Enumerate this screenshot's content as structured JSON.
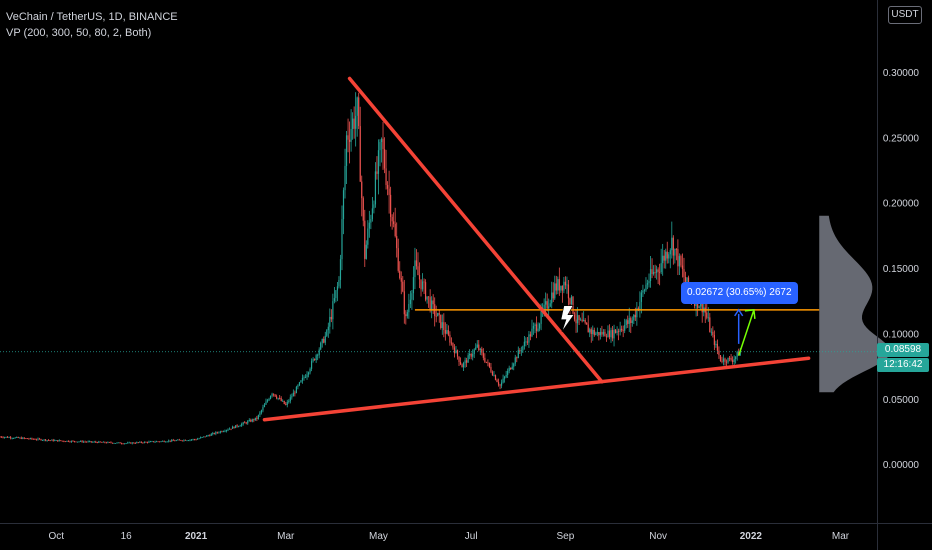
{
  "header": {
    "symbol_line": "VeChain / TetherUS, 1D, BINANCE",
    "indicator_line": "VP (200, 300, 50, 80, 2, Both)"
  },
  "currency_label": "USDT",
  "last_price": {
    "label": "0.08598",
    "value": 0.08598,
    "color": "#26a69a"
  },
  "countdown": {
    "label": "12:16:42"
  },
  "measure_label": "0.02672 (30.65%) 2672",
  "colors": {
    "up": "#26a69a",
    "down": "#ef5350",
    "trendline": "#f44336",
    "level": "#ff9800",
    "measure_arrow": "#2962ff",
    "projection_arrow": "#76ff03",
    "volume_profile": "#787b86"
  },
  "chart_data": {
    "type": "candlestick",
    "title": "VeChain / TetherUS, 1D, BINANCE",
    "y_ticks": [
      {
        "label": "0.30000",
        "value": 0.3
      },
      {
        "label": "0.25000",
        "value": 0.25
      },
      {
        "label": "0.20000",
        "value": 0.2
      },
      {
        "label": "0.15000",
        "value": 0.15
      },
      {
        "label": "0.10000",
        "value": 0.1
      },
      {
        "label": "0.05000",
        "value": 0.05
      },
      {
        "label": "0.00000",
        "value": 0.0
      }
    ],
    "ylim": [
      -0.045,
      0.355
    ],
    "xlim": [
      "2020-08-25",
      "2022-03-25"
    ],
    "x_ticks": [
      {
        "label": "Oct",
        "date": "2020-10-01",
        "bold": false
      },
      {
        "label": "16",
        "date": "2020-11-16",
        "bold": false
      },
      {
        "label": "2021",
        "date": "2021-01-01",
        "bold": true
      },
      {
        "label": "Mar",
        "date": "2021-03-01",
        "bold": false
      },
      {
        "label": "May",
        "date": "2021-05-01",
        "bold": false
      },
      {
        "label": "Jul",
        "date": "2021-07-01",
        "bold": false
      },
      {
        "label": "Sep",
        "date": "2021-09-01",
        "bold": false
      },
      {
        "label": "Nov",
        "date": "2021-11-01",
        "bold": false
      },
      {
        "label": "2022",
        "date": "2022-01-01",
        "bold": true
      },
      {
        "label": "Mar",
        "date": "2022-03-01",
        "bold": false
      }
    ],
    "price_path": [
      [
        "2020-08-25",
        0.021
      ],
      [
        "2020-10-01",
        0.018
      ],
      [
        "2020-11-16",
        0.016
      ],
      [
        "2021-01-01",
        0.019
      ],
      [
        "2021-01-25",
        0.028
      ],
      [
        "2021-02-10",
        0.035
      ],
      [
        "2021-02-20",
        0.055
      ],
      [
        "2021-03-01",
        0.045
      ],
      [
        "2021-03-15",
        0.07
      ],
      [
        "2021-03-28",
        0.1
      ],
      [
        "2021-04-05",
        0.14
      ],
      [
        "2021-04-10",
        0.25
      ],
      [
        "2021-04-17",
        0.27
      ],
      [
        "2021-04-22",
        0.16
      ],
      [
        "2021-04-27",
        0.2
      ],
      [
        "2021-05-03",
        0.245
      ],
      [
        "2021-05-10",
        0.19
      ],
      [
        "2021-05-19",
        0.11
      ],
      [
        "2021-05-25",
        0.15
      ],
      [
        "2021-06-05",
        0.12
      ],
      [
        "2021-06-15",
        0.1
      ],
      [
        "2021-06-25",
        0.075
      ],
      [
        "2021-07-05",
        0.09
      ],
      [
        "2021-07-20",
        0.06
      ],
      [
        "2021-08-01",
        0.085
      ],
      [
        "2021-08-15",
        0.11
      ],
      [
        "2021-08-25",
        0.135
      ],
      [
        "2021-09-01",
        0.14
      ],
      [
        "2021-09-08",
        0.11
      ],
      [
        "2021-09-20",
        0.1
      ],
      [
        "2021-10-01",
        0.1
      ],
      [
        "2021-10-15",
        0.11
      ],
      [
        "2021-10-25",
        0.14
      ],
      [
        "2021-11-01",
        0.15
      ],
      [
        "2021-11-10",
        0.17
      ],
      [
        "2021-11-22",
        0.13
      ],
      [
        "2021-12-01",
        0.12
      ],
      [
        "2021-12-06",
        0.1
      ],
      [
        "2021-12-12",
        0.08
      ],
      [
        "2021-12-20",
        0.08
      ],
      [
        "2021-12-25",
        0.086
      ]
    ],
    "annotations": {
      "descending_trendline": [
        [
          "2021-04-12",
          0.295
        ],
        [
          "2021-09-25",
          0.063
        ]
      ],
      "ascending_trendline": [
        [
          "2021-02-15",
          0.034
        ],
        [
          "2022-02-08",
          0.081
        ]
      ],
      "horizontal_level": {
        "value": 0.118,
        "from": "2021-05-25",
        "to": "2022-02-15"
      },
      "measure_arrow": [
        [
          "2021-12-24",
          0.092
        ],
        [
          "2021-12-24",
          0.118
        ]
      ],
      "projection_arrow": [
        [
          "2021-12-24",
          0.083
        ],
        [
          "2022-01-03",
          0.118
        ]
      ],
      "current_price_line": 0.08598,
      "volume_profile": {
        "x_start": "2022-02-15",
        "price_range": [
          0.055,
          0.19
        ],
        "poc": 0.085
      }
    }
  }
}
